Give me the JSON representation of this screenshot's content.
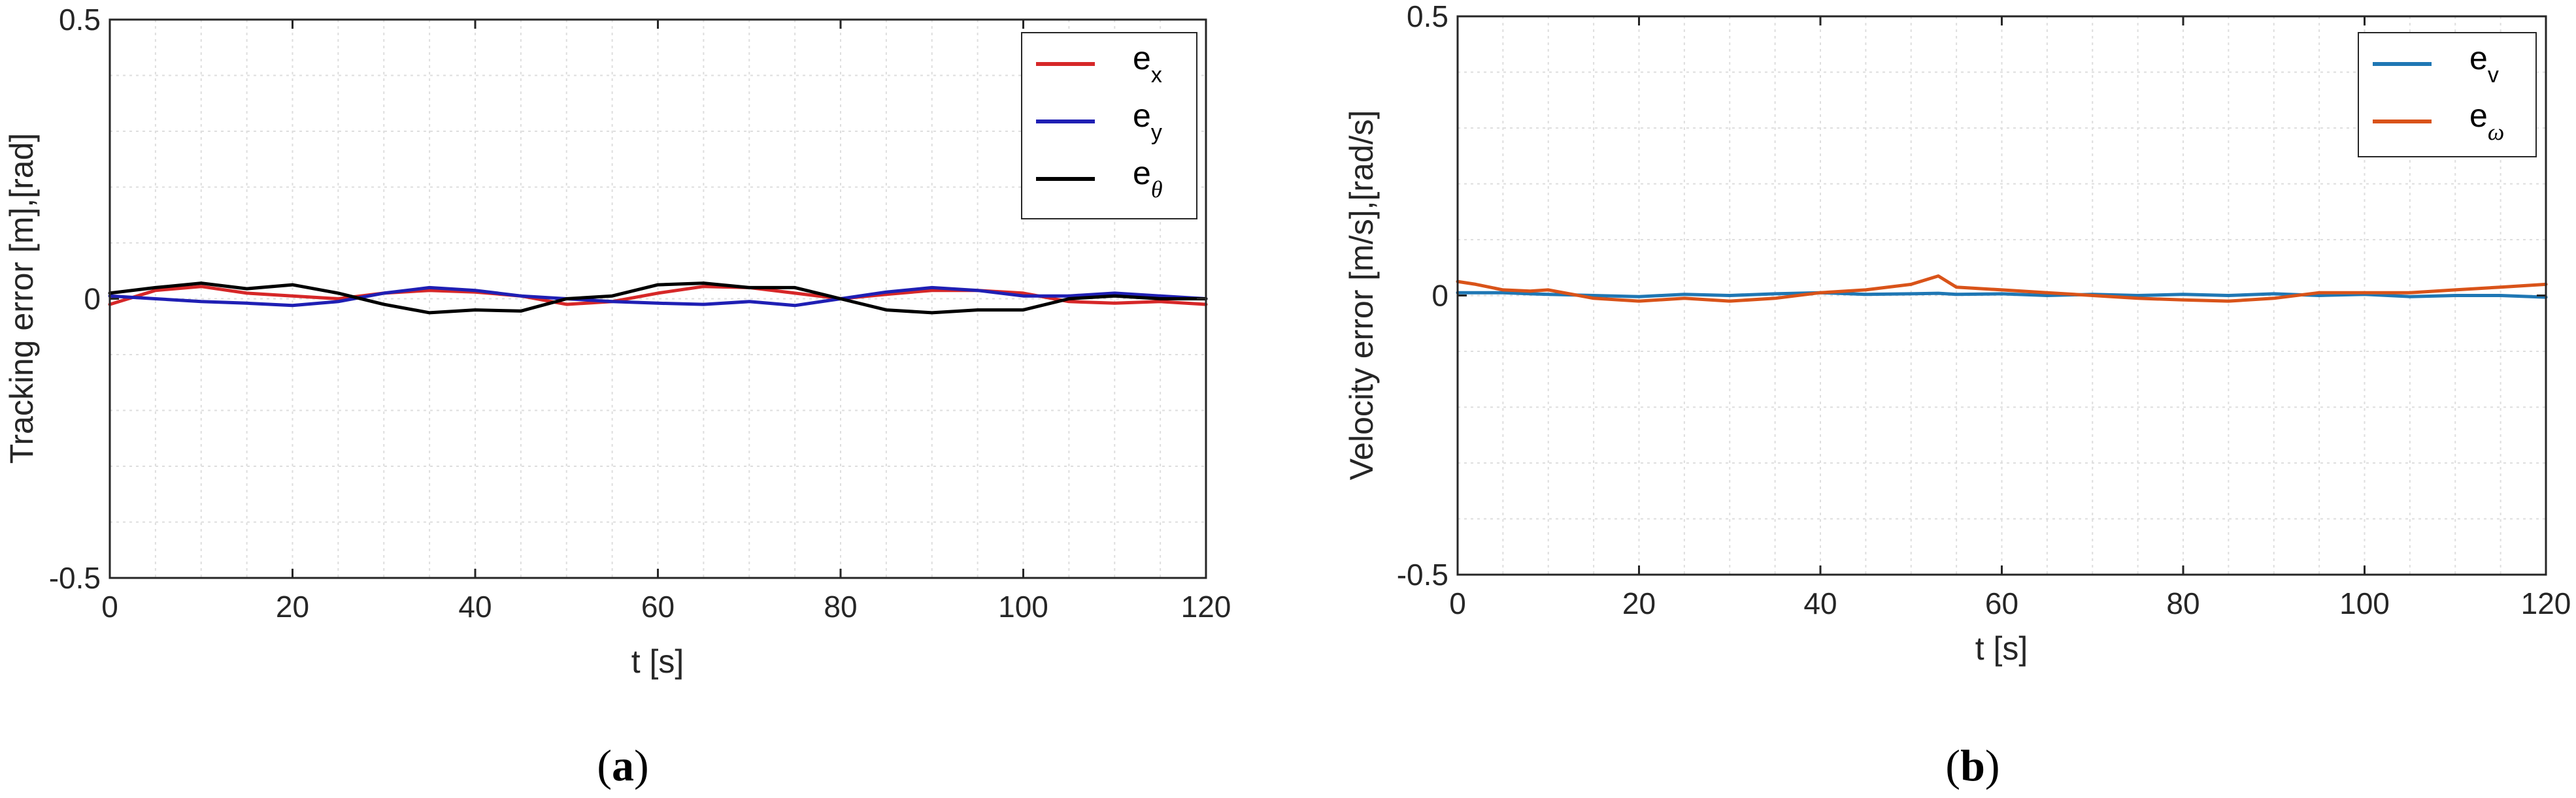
{
  "panels": [
    {
      "caption_open": "(",
      "caption_letter": "a",
      "caption_close": ")"
    },
    {
      "caption_open": "(",
      "caption_letter": "b",
      "caption_close": ")"
    }
  ],
  "chart_data": [
    {
      "type": "line",
      "title": "",
      "xlabel": "t [s]",
      "ylabel": "Tracking error [m],[rad]",
      "xlim": [
        0,
        120
      ],
      "ylim": [
        -0.5,
        0.5
      ],
      "xticks": [
        0,
        20,
        40,
        60,
        80,
        100,
        120
      ],
      "xtick_labels": [
        "0",
        "20",
        "40",
        "60",
        "80",
        "100",
        "120"
      ],
      "yticks": [
        -0.5,
        0,
        0.5
      ],
      "ytick_labels": [
        "-0.5",
        "0",
        "0.5"
      ],
      "grid": true,
      "legend_position": "top-right",
      "x": [
        0,
        5,
        10,
        15,
        20,
        25,
        30,
        35,
        40,
        45,
        50,
        55,
        60,
        65,
        70,
        75,
        80,
        85,
        90,
        95,
        100,
        105,
        110,
        115,
        120
      ],
      "series": [
        {
          "name": "e_x",
          "legend_base": "e",
          "legend_sub": "x",
          "sub_italic": false,
          "color": "#d62728",
          "values": [
            -0.01,
            0.015,
            0.022,
            0.01,
            0.005,
            0.0,
            0.01,
            0.015,
            0.012,
            0.005,
            -0.01,
            -0.005,
            0.01,
            0.022,
            0.02,
            0.01,
            0.0,
            0.008,
            0.015,
            0.015,
            0.01,
            -0.005,
            -0.008,
            -0.005,
            -0.01
          ]
        },
        {
          "name": "e_y",
          "legend_base": "e",
          "legend_sub": "y",
          "sub_italic": false,
          "color": "#1f1fb4",
          "values": [
            0.005,
            0.0,
            -0.005,
            -0.008,
            -0.012,
            -0.005,
            0.01,
            0.02,
            0.015,
            0.005,
            0.0,
            -0.005,
            -0.008,
            -0.01,
            -0.005,
            -0.012,
            0.0,
            0.012,
            0.02,
            0.015,
            0.005,
            0.005,
            0.01,
            0.005,
            0.0
          ]
        },
        {
          "name": "e_theta",
          "legend_base": "e",
          "legend_sub": "θ",
          "sub_italic": true,
          "color": "#000000",
          "values": [
            0.01,
            0.02,
            0.028,
            0.018,
            0.025,
            0.01,
            -0.01,
            -0.025,
            -0.02,
            -0.022,
            0.0,
            0.005,
            0.025,
            0.028,
            0.02,
            0.02,
            0.0,
            -0.02,
            -0.025,
            -0.02,
            -0.02,
            0.0,
            0.005,
            0.0,
            0.0
          ]
        }
      ]
    },
    {
      "type": "line",
      "title": "",
      "xlabel": "t [s]",
      "ylabel": "Velocity error [m/s],[rad/s]",
      "xlim": [
        0,
        120
      ],
      "ylim": [
        -0.5,
        0.5
      ],
      "xticks": [
        0,
        20,
        40,
        60,
        80,
        100,
        120
      ],
      "xtick_labels": [
        "0",
        "20",
        "40",
        "60",
        "80",
        "100",
        "120"
      ],
      "yticks": [
        -0.5,
        0,
        0.5
      ],
      "ytick_labels": [
        "-0.5",
        "0",
        "0.5"
      ],
      "grid": true,
      "legend_position": "top-right",
      "x": [
        0,
        2,
        5,
        8,
        10,
        15,
        20,
        25,
        30,
        35,
        40,
        45,
        50,
        53,
        55,
        60,
        65,
        70,
        75,
        80,
        85,
        90,
        95,
        100,
        105,
        110,
        115,
        120
      ],
      "series": [
        {
          "name": "e_v",
          "legend_base": "e",
          "legend_sub": "v",
          "sub_italic": false,
          "color": "#1f77b4",
          "values": [
            0.005,
            0.005,
            0.005,
            0.003,
            0.002,
            0.0,
            -0.002,
            0.002,
            0.0,
            0.003,
            0.005,
            0.002,
            0.003,
            0.004,
            0.002,
            0.003,
            0.0,
            0.002,
            0.0,
            0.002,
            0.0,
            0.003,
            0.0,
            0.002,
            -0.002,
            0.0,
            0.0,
            -0.003
          ]
        },
        {
          "name": "e_omega",
          "legend_base": "e",
          "legend_sub": "ω",
          "sub_italic": true,
          "color": "#d95319",
          "values": [
            0.025,
            0.02,
            0.01,
            0.008,
            0.01,
            -0.005,
            -0.01,
            -0.005,
            -0.01,
            -0.005,
            0.005,
            0.01,
            0.02,
            0.035,
            0.015,
            0.01,
            0.005,
            0.0,
            -0.005,
            -0.008,
            -0.01,
            -0.005,
            0.005,
            0.005,
            0.005,
            0.01,
            0.015,
            0.02
          ]
        }
      ]
    }
  ]
}
